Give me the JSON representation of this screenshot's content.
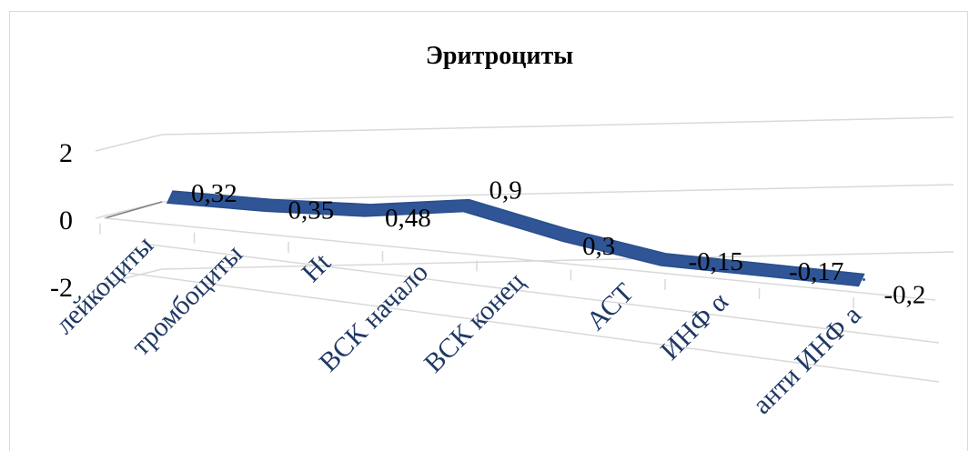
{
  "chart_data": {
    "type": "line",
    "style": "3d-line",
    "title": "Эритроциты",
    "categories": [
      "лейкоциты",
      "тромбоциты",
      "Ht",
      "ВСК начало",
      "ВСК конец",
      "АСТ",
      "ИНФ α",
      "анти ИНФ а"
    ],
    "values": [
      0.32,
      0.35,
      0.48,
      0.9,
      0.3,
      -0.15,
      -0.17,
      -0.2
    ],
    "data_labels": [
      "0,32",
      "0,35",
      "0,48",
      "0,9",
      "0,3",
      "-0,15",
      "-0,17",
      "-0,2"
    ],
    "y_ticks": [
      "2",
      "0",
      "-2"
    ],
    "ylim": [
      -2,
      2
    ],
    "grid": true,
    "legend": "none",
    "line_color": "#2f5597",
    "tick_color": "#1f3864"
  }
}
